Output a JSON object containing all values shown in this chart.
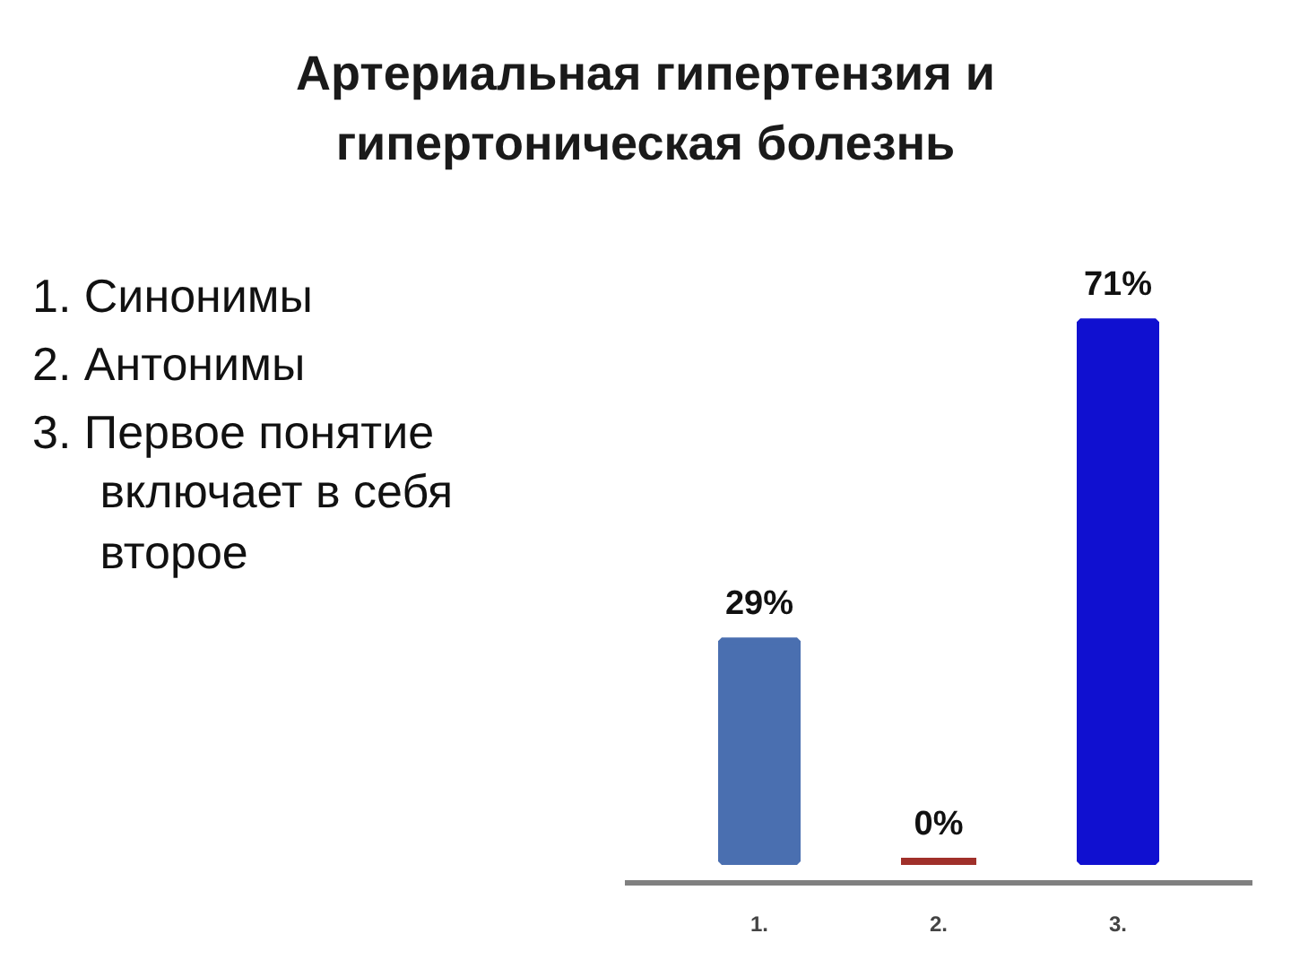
{
  "chart_data": {
    "type": "bar",
    "title": "Артериальная гипертензия и\nгипертоническая болезнь",
    "annotations": [
      "1. Синонимы",
      "2. Антонимы",
      "3. Первое понятие включает в себя второе"
    ],
    "categories": [
      "1.",
      "2.",
      "3."
    ],
    "values": [
      29,
      0,
      71
    ],
    "colors": [
      "#4a6fb0",
      "#a0302a",
      "#1010d0"
    ],
    "value_labels": [
      "29%",
      "0%",
      "71%"
    ]
  }
}
